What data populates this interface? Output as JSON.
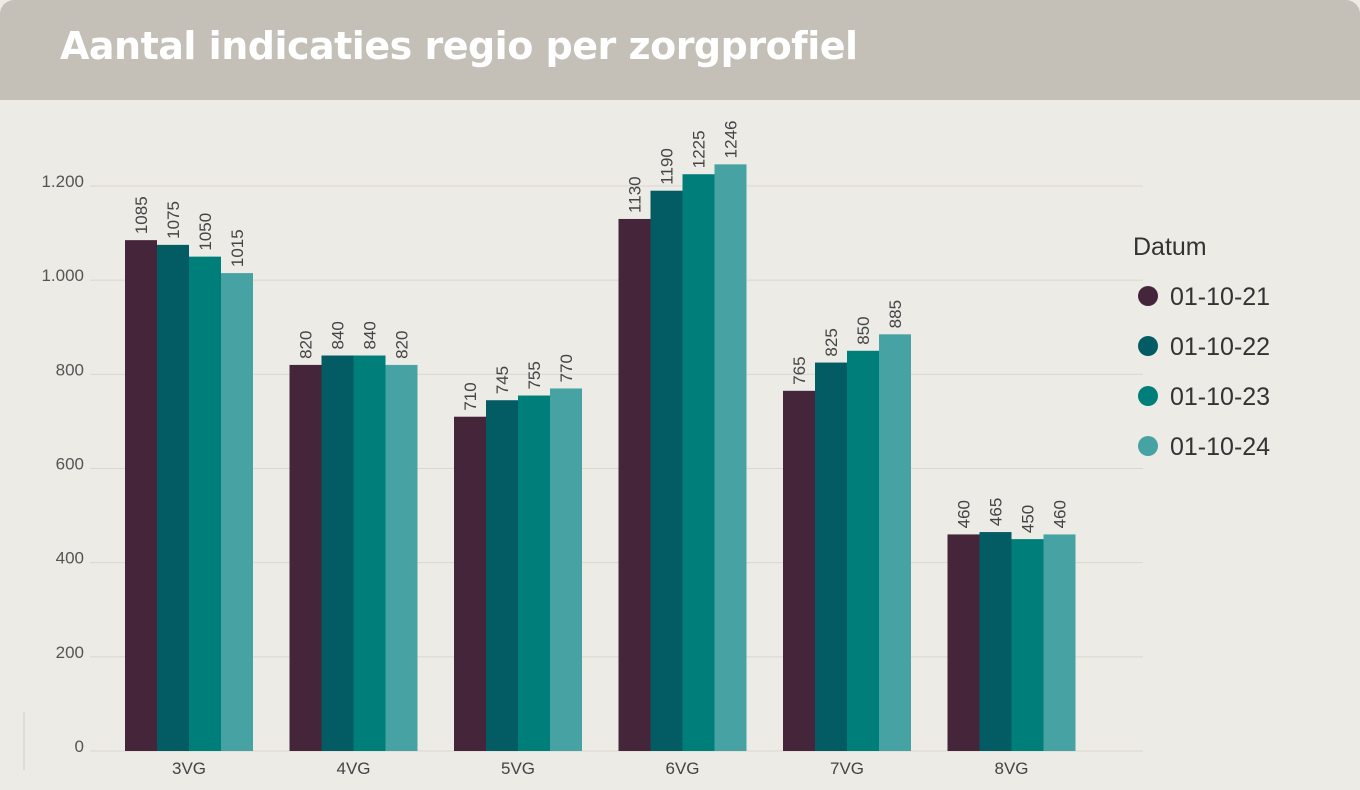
{
  "title": "Aantal indicaties regio per zorgprofiel",
  "chart_data": {
    "type": "bar",
    "categories": [
      "3VG",
      "4VG",
      "5VG",
      "6VG",
      "7VG",
      "8VG"
    ],
    "series": [
      {
        "name": "01-10-21",
        "color": "#44253a",
        "values": [
          1085,
          820,
          710,
          1130,
          765,
          460
        ]
      },
      {
        "name": "01-10-22",
        "color": "#035c63",
        "values": [
          1075,
          840,
          745,
          1190,
          825,
          465
        ]
      },
      {
        "name": "01-10-23",
        "color": "#007e79",
        "values": [
          1050,
          840,
          755,
          1225,
          850,
          450
        ]
      },
      {
        "name": "01-10-24",
        "color": "#47a3a3",
        "values": [
          1015,
          820,
          770,
          1246,
          885,
          460
        ]
      }
    ],
    "ylim": [
      0,
      1200
    ],
    "yticks": [
      {
        "value": 0,
        "label": "0"
      },
      {
        "value": 200,
        "label": "200"
      },
      {
        "value": 400,
        "label": "400"
      },
      {
        "value": 600,
        "label": "600"
      },
      {
        "value": 800,
        "label": "800"
      },
      {
        "value": 1000,
        "label": "1.000"
      },
      {
        "value": 1200,
        "label": "1.200"
      }
    ],
    "legend_title": "Datum",
    "legend_position": "right",
    "grid": true
  }
}
